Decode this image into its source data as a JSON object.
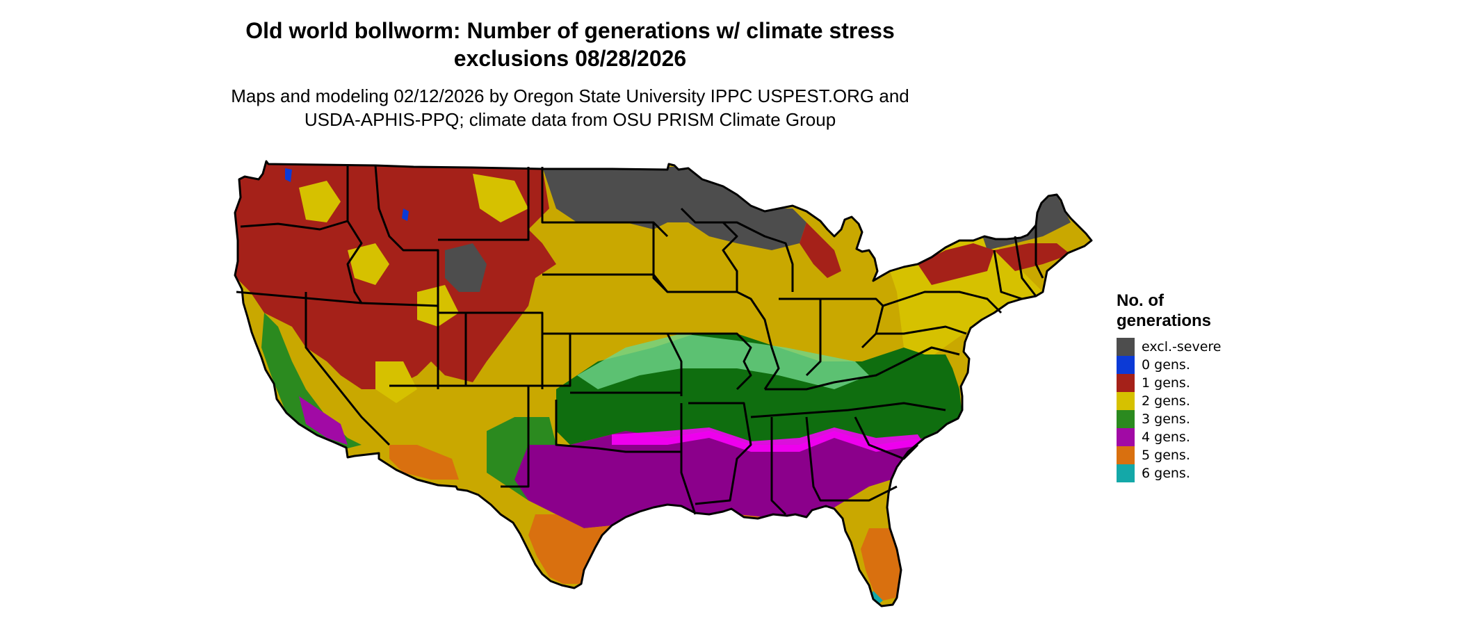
{
  "title": {
    "line1": "Old world bollworm: Number of generations w/ climate stress",
    "line2": "exclusions 08/28/2026"
  },
  "subtitle": {
    "line1": "Maps and modeling 02/12/2026 by Oregon State University IPPC USPEST.ORG and",
    "line2": "USDA-APHIS-PPQ; climate data from OSU PRISM Climate Group"
  },
  "legend": {
    "title_line1": "No. of",
    "title_line2": "generations",
    "items": [
      {
        "label": "excl.-severe",
        "color": "#4d4d4d"
      },
      {
        "label": "0 gens.",
        "color": "#0c3ad6"
      },
      {
        "label": "1 gens.",
        "color": "#a52119"
      },
      {
        "label": "2 gens.",
        "color": "#d6c100"
      },
      {
        "label": "3 gens.",
        "color": "#2b8a1f"
      },
      {
        "label": "4 gens.",
        "color": "#a10aa5"
      },
      {
        "label": "5 gens.",
        "color": "#d9700f"
      },
      {
        "label": "6 gens.",
        "color": "#14a8a8"
      }
    ]
  },
  "colors": {
    "gen2_dark": "#c9a800",
    "gen3_dark": "#0f6e0f",
    "gen3_light": "#6fd68b",
    "gen4_dark": "#8b008b",
    "gen4_bright": "#ff00ff",
    "border": "#000000"
  }
}
